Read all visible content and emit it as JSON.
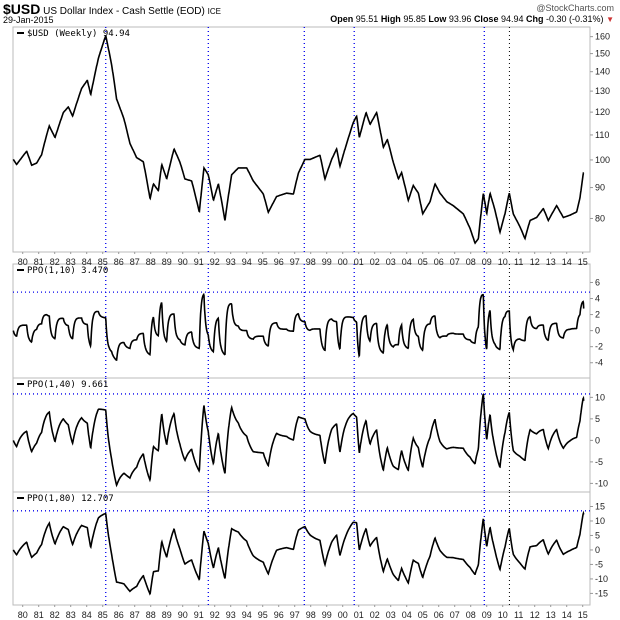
{
  "header": {
    "symbol": "$USD",
    "name": "US Dollar Index - Cash Settle (EOD)",
    "exchange": "ICE",
    "date": "29-Jan-2015",
    "watermark": "@StockCharts.com",
    "open_label": "Open",
    "open": "95.51",
    "high_label": "High",
    "high": "95.85",
    "low_label": "Low",
    "low": "93.96",
    "close_label": "Close",
    "close": "94.94",
    "chg_label": "Chg",
    "chg": "-0.30 (-0.31%)",
    "chg_direction": "down",
    "down_color": "#cc3333"
  },
  "chart_data": [
    {
      "type": "line",
      "panel": "price",
      "legend": "$USD (Weekly) 94.94",
      "scale": "log",
      "ylim": [
        70.4,
        166
      ],
      "yticks": [
        80,
        90,
        100,
        110,
        120,
        130,
        140,
        150,
        160
      ],
      "xlim": [
        1979.4,
        2015.5
      ],
      "xtick_labels": [
        "80",
        "81",
        "82",
        "83",
        "84",
        "85",
        "86",
        "87",
        "88",
        "89",
        "90",
        "91",
        "92",
        "93",
        "94",
        "95",
        "96",
        "97",
        "98",
        "99",
        "00",
        "01",
        "02",
        "03",
        "04",
        "05",
        "06",
        "07",
        "08",
        "09",
        "10",
        "11",
        "12",
        "13",
        "14",
        "15"
      ],
      "x": [
        1979.41,
        1979.62,
        1980.25,
        1980.56,
        1980.87,
        1981.18,
        1981.5,
        1981.66,
        1982.02,
        1982.54,
        1982.85,
        1983.12,
        1983.68,
        1984.04,
        1984.25,
        1984.73,
        1985.19,
        1985.56,
        1985.87,
        1986.33,
        1986.7,
        1987.12,
        1987.54,
        1987.96,
        1988.17,
        1988.48,
        1988.69,
        1989.0,
        1989.46,
        1989.83,
        1990.14,
        1990.56,
        1991.04,
        1991.33,
        1991.6,
        1991.92,
        1992.23,
        1992.64,
        1993.06,
        1993.48,
        1994.0,
        1994.41,
        1995.04,
        1995.35,
        1995.87,
        1996.5,
        1996.92,
        1997.23,
        1997.64,
        1997.96,
        1998.58,
        1998.89,
        1999.31,
        1999.62,
        1999.83,
        2000.25,
        2000.66,
        2000.87,
        2001.04,
        2001.46,
        2001.71,
        2002.12,
        2002.54,
        2002.79,
        2003.16,
        2003.48,
        2003.68,
        2004.1,
        2004.41,
        2004.73,
        2005.0,
        2005.46,
        2005.77,
        2006.08,
        2006.5,
        2006.91,
        2007.54,
        2007.96,
        2008.27,
        2008.48,
        2008.79,
        2009.0,
        2009.21,
        2009.52,
        2009.83,
        2010.14,
        2010.41,
        2010.66,
        2011.08,
        2011.39,
        2011.71,
        2012.12,
        2012.54,
        2012.85,
        2013.37,
        2013.79,
        2014.2,
        2014.62,
        2014.83,
        2015.04,
        2015.08
      ],
      "y": [
        100.2,
        98.3,
        103.4,
        98.0,
        98.8,
        102.0,
        110.1,
        113.8,
        108.9,
        119.8,
        122.4,
        118.2,
        131.3,
        135.5,
        128.2,
        147.3,
        160.6,
        143.6,
        126.1,
        116.9,
        106.5,
        100.9,
        99.3,
        86.2,
        91.3,
        88.9,
        98.3,
        93.0,
        104.3,
        99.1,
        93.0,
        92.3,
        81.9,
        97.0,
        94.5,
        85.7,
        91.3,
        79.4,
        94.5,
        97.0,
        97.0,
        92.3,
        87.8,
        81.9,
        87.0,
        88.1,
        87.8,
        95.1,
        100.2,
        100.2,
        101.8,
        93.0,
        100.2,
        104.3,
        97.6,
        106.5,
        115.3,
        118.2,
        108.9,
        119.8,
        114.5,
        119.8,
        104.9,
        108.1,
        99.1,
        93.0,
        95.3,
        85.7,
        90.7,
        88.1,
        81.4,
        85.3,
        91.3,
        88.1,
        85.3,
        84.0,
        81.4,
        77.0,
        72.8,
        74.1,
        88.1,
        81.4,
        88.1,
        82.5,
        75.9,
        81.4,
        88.1,
        81.4,
        77.5,
        74.1,
        79.4,
        80.3,
        83.1,
        79.4,
        84.0,
        80.3,
        81.0,
        82.0,
        86.5,
        95.1,
        94.94
      ]
    },
    {
      "type": "line",
      "panel": "ppo10",
      "legend": "PPO(1,10) 3.470",
      "period": 10,
      "ylim": [
        -5.9,
        8.3
      ],
      "yticks": [
        -4,
        -2,
        0,
        2,
        4,
        6
      ],
      "reference_level": 4.8
    },
    {
      "type": "line",
      "panel": "ppo40",
      "legend": "PPO(1,40) 9.661",
      "period": 40,
      "ylim": [
        -12,
        14.5
      ],
      "yticks": [
        -10,
        -5,
        0,
        5,
        10
      ],
      "reference_level": 10.8
    },
    {
      "type": "line",
      "panel": "ppo80",
      "legend": "PPO(1,80) 12.707",
      "period": 80,
      "ylim": [
        -19,
        20
      ],
      "yticks": [
        -15,
        -10,
        -5,
        0,
        5,
        10,
        15
      ],
      "reference_level": 13.5
    }
  ],
  "event_lines": {
    "blue": [
      1985.19,
      1991.6,
      1997.6,
      2000.72,
      2008.85
    ],
    "black": [
      2010.42
    ],
    "blue_color": "#0000ee",
    "black_color": "#000000"
  }
}
